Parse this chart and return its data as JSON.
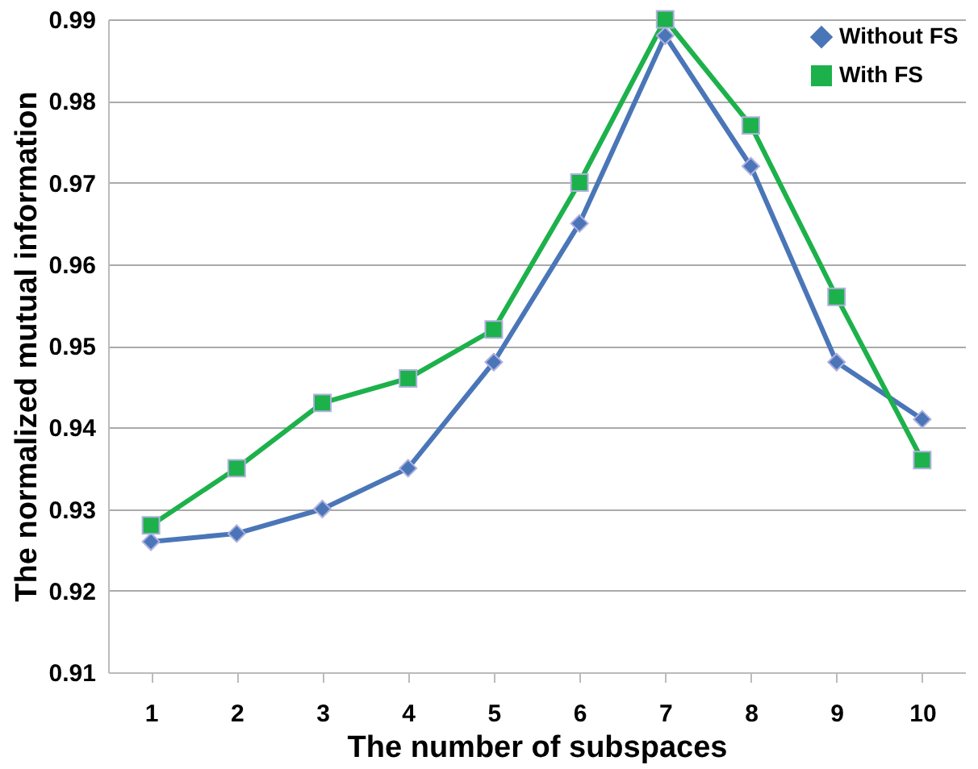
{
  "chart_data": {
    "type": "line",
    "xlabel": "The number of subspaces",
    "ylabel": "The normalized mutual information",
    "categories": [
      "1",
      "2",
      "3",
      "4",
      "5",
      "6",
      "7",
      "8",
      "9",
      "10"
    ],
    "series": [
      {
        "name": "Without FS",
        "color": "#4a76b8",
        "marker": "diamond",
        "values": [
          0.926,
          0.927,
          0.93,
          0.935,
          0.948,
          0.965,
          0.988,
          0.972,
          0.948,
          0.941
        ]
      },
      {
        "name": "With FS",
        "color": "#1db14b",
        "marker": "square",
        "values": [
          0.928,
          0.935,
          0.943,
          0.946,
          0.952,
          0.97,
          0.99,
          0.977,
          0.956,
          0.936
        ]
      }
    ],
    "ylim": [
      0.91,
      0.99
    ],
    "yticks": [
      0.91,
      0.92,
      0.93,
      0.94,
      0.95,
      0.96,
      0.97,
      0.98,
      0.99
    ],
    "grid": "y",
    "legend": "top right"
  }
}
